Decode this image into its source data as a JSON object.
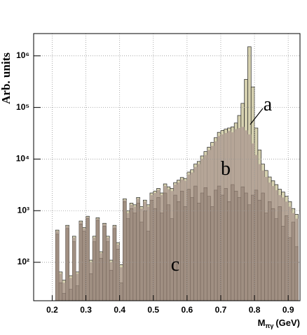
{
  "chart_data": {
    "type": "histogram",
    "ylabel": "Arb. units",
    "xlabel": {
      "main": "M",
      "sub": "πγ",
      "unit": "(GeV)"
    },
    "log_y": true,
    "grid": true,
    "xlim": [
      0.145,
      0.935
    ],
    "ylim": [
      18,
      2700000
    ],
    "xticks": [
      0.2,
      0.3,
      0.4,
      0.5,
      0.6,
      0.7,
      0.8,
      0.9
    ],
    "yticks": [
      {
        "value": 100,
        "label": "10²"
      },
      {
        "value": 1000,
        "label": "10³"
      },
      {
        "value": 10000,
        "label": "10⁴"
      },
      {
        "value": 100000,
        "label": "10⁵"
      },
      {
        "value": 1000000,
        "label": "10⁶"
      }
    ],
    "bins": [
      0.21,
      0.22,
      0.23,
      0.24,
      0.25,
      0.26,
      0.27,
      0.28,
      0.29,
      0.3,
      0.31,
      0.32,
      0.33,
      0.34,
      0.35,
      0.36,
      0.37,
      0.38,
      0.39,
      0.4,
      0.41,
      0.42,
      0.43,
      0.44,
      0.45,
      0.46,
      0.47,
      0.48,
      0.49,
      0.5,
      0.51,
      0.52,
      0.53,
      0.54,
      0.55,
      0.56,
      0.57,
      0.58,
      0.59,
      0.6,
      0.61,
      0.62,
      0.63,
      0.64,
      0.65,
      0.66,
      0.67,
      0.68,
      0.69,
      0.7,
      0.71,
      0.72,
      0.73,
      0.74,
      0.75,
      0.76,
      0.77,
      0.78,
      0.79,
      0.8,
      0.81,
      0.82,
      0.83,
      0.84,
      0.85,
      0.86,
      0.87,
      0.88,
      0.89,
      0.9,
      0.91,
      0.92,
      0.93
    ],
    "series": [
      {
        "name": "a",
        "color": "#d6d1b0",
        "values": [
          420,
          65,
          45,
          520,
          55,
          320,
          65,
          630,
          470,
          780,
          110,
          320,
          730,
          160,
          570,
          320,
          110,
          520,
          240,
          90,
          1700,
          1000,
          1400,
          1300,
          1800,
          1200,
          1600,
          1300,
          2200,
          2400,
          2700,
          2200,
          3300,
          2900,
          2700,
          3500,
          3900,
          4400,
          4200,
          5600,
          6200,
          8000,
          9000,
          11500,
          14000,
          17000,
          21000,
          26000,
          33000,
          36000,
          38000,
          40000,
          42000,
          50000,
          70000,
          120000,
          350000,
          1500000,
          250000,
          40000,
          15000,
          8000,
          6000,
          4500,
          3800,
          3200,
          2600,
          2300,
          1900,
          1500,
          1100,
          850
        ]
      },
      {
        "name": "b",
        "color": "#b5a597",
        "values": [
          400,
          60,
          40,
          500,
          50,
          300,
          60,
          600,
          450,
          750,
          100,
          300,
          700,
          150,
          550,
          300,
          100,
          500,
          220,
          80,
          1600,
          900,
          1300,
          1200,
          1700,
          1100,
          1500,
          1200,
          2000,
          2200,
          2500,
          2000,
          3000,
          2600,
          2400,
          3200,
          3500,
          4000,
          3800,
          5000,
          5500,
          7000,
          8000,
          10000,
          12000,
          15000,
          18000,
          22000,
          28000,
          30000,
          32000,
          35000,
          33000,
          38000,
          40000,
          42000,
          36000,
          30000,
          20000,
          12000,
          8000,
          6000,
          4500,
          3500,
          3000,
          2500,
          2000,
          1800,
          1500,
          1200,
          900,
          700
        ]
      },
      {
        "name": "c",
        "color": "#a08f82",
        "values": [
          350,
          40,
          25,
          450,
          30,
          250,
          35,
          550,
          400,
          700,
          60,
          250,
          650,
          120,
          500,
          250,
          70,
          450,
          180,
          40,
          1500,
          700,
          1100,
          900,
          1400,
          600,
          1000,
          400,
          1600,
          1100,
          1800,
          900,
          2200,
          1300,
          700,
          2000,
          1500,
          2400,
          1200,
          2600,
          1800,
          3000,
          1400,
          2200,
          2800,
          1900,
          1200,
          2500,
          3000,
          2000,
          2700,
          1500,
          3200,
          2400,
          1800,
          2900,
          2200,
          1300,
          2000,
          2500,
          1600,
          2200,
          900,
          1500,
          1100,
          700,
          1200,
          500,
          800,
          300,
          600,
          200
        ]
      }
    ]
  }
}
